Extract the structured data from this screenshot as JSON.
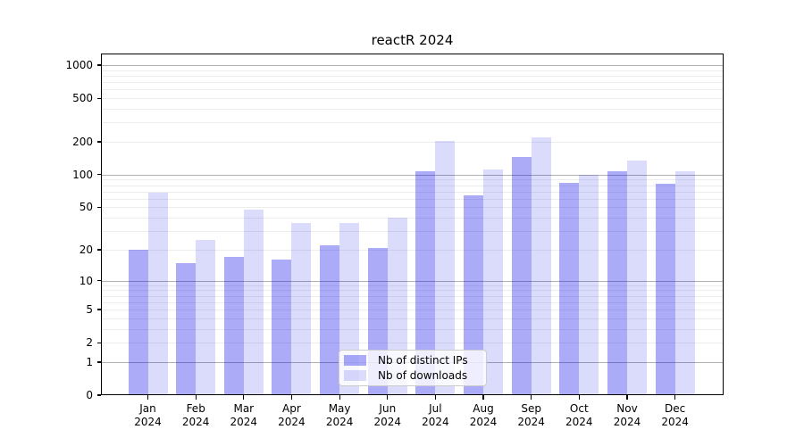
{
  "chart_data": {
    "type": "bar",
    "title": "reactR 2024",
    "x": {
      "months": [
        "Jan",
        "Feb",
        "Mar",
        "Apr",
        "May",
        "Jun",
        "Jul",
        "Aug",
        "Sep",
        "Oct",
        "Nov",
        "Dec"
      ],
      "year": "2024"
    },
    "series": [
      {
        "name": "Nb of distinct IPs",
        "fill": "rgba(13,13,232,0.35)",
        "solid_equivalent": "#a6a6f6",
        "values": [
          20,
          15,
          17,
          16,
          22,
          21,
          108,
          64,
          145,
          84,
          108,
          82
        ]
      },
      {
        "name": "Nb of downloads",
        "fill": "rgba(13,13,232,0.15)",
        "solid_equivalent": "#dadaf9",
        "values": [
          68,
          25,
          48,
          36,
          36,
          40,
          202,
          112,
          220,
          100,
          135,
          108
        ]
      }
    ],
    "y_axis": {
      "scale": "log1p",
      "min": 0,
      "max": 1000,
      "tick_labels": [
        0,
        1,
        2,
        5,
        10,
        20,
        50,
        100,
        200,
        500,
        1000
      ],
      "major_gridlines": [
        1,
        10,
        100,
        1000
      ]
    },
    "grid": "on",
    "legend_position": "bottom-center",
    "colors": {
      "major_grid": "#b0b0b0",
      "minor_grid": "#ededed",
      "spine": "#000000",
      "text": "#000000",
      "legend_border": "#cccccc"
    }
  }
}
